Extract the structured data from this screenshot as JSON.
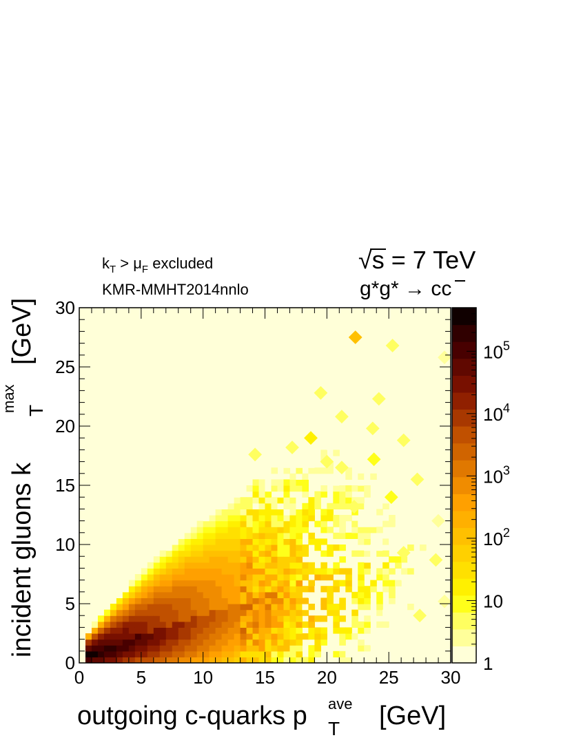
{
  "chart_data": {
    "type": "heatmap",
    "header": {
      "cut_label": {
        "k": "k",
        "sub_t": "T",
        "gt": " > μ",
        "sub_f": "F",
        "rest": " excluded"
      },
      "pdf_label": "KMR-MMHT2014nnlo",
      "energy_label": {
        "sqrt_symbol": "√",
        "rest": "s = 7 TeV"
      },
      "process_label": {
        "prefix": "g*g* → c",
        "bar_char": "c"
      }
    },
    "xlabel": {
      "main": "outgoing c-quarks p",
      "sup": "ave",
      "sub": "T",
      "unit": "[GeV]"
    },
    "ylabel": {
      "main": "incident gluons k",
      "sup": "max",
      "sub": "T",
      "unit": "[GeV]"
    },
    "xlim": [
      0,
      30
    ],
    "ylim": [
      0,
      30
    ],
    "x_ticks": [
      "0",
      "5",
      "10",
      "15",
      "20",
      "25",
      "30"
    ],
    "y_ticks": [
      "0",
      "5",
      "10",
      "15",
      "20",
      "25",
      "30"
    ],
    "x_tick_values": [
      0,
      5,
      10,
      15,
      20,
      25,
      30
    ],
    "y_tick_values": [
      0,
      5,
      10,
      15,
      20,
      25,
      30
    ],
    "colorbar": {
      "scale": "log",
      "range": [
        1,
        500000
      ],
      "tick_values": [
        1,
        10,
        100,
        1000,
        10000,
        100000
      ],
      "tick_labels": [
        {
          "base": "1",
          "exp": ""
        },
        {
          "base": "10",
          "exp": ""
        },
        {
          "base": "10",
          "exp": "2"
        },
        {
          "base": "10",
          "exp": "3"
        },
        {
          "base": "10",
          "exp": "4"
        },
        {
          "base": "10",
          "exp": "5"
        }
      ],
      "levels": 20,
      "palette": [
        "#ffffd8",
        "#ffff9a",
        "#ffff60",
        "#ffff1a",
        "#fff000",
        "#ffe000",
        "#ffd000",
        "#ffc000",
        "#ffb000",
        "#ffa000",
        "#f08c00",
        "#e07800",
        "#d06400",
        "#c05000",
        "#a83800",
        "#902000",
        "#781000",
        "#600800",
        "#480000",
        "#300000",
        "#100000"
      ]
    },
    "density_model": {
      "description": "log10 density shown as filled contours",
      "peak_log10": 5.6,
      "peak_at": {
        "x": 1.5,
        "y": 1.5
      },
      "kt_over_pt_mean": 0.35,
      "kt_over_pt_max": 1.3
    },
    "scattered_cells": [
      {
        "x": 22.3,
        "y": 27.5,
        "log10": 2.0
      },
      {
        "x": 25.3,
        "y": 26.8,
        "log10": 0.6
      },
      {
        "x": 29.5,
        "y": 25.8,
        "log10": 0.4
      },
      {
        "x": 19.5,
        "y": 22.8,
        "log10": 0.7
      },
      {
        "x": 24.2,
        "y": 22.3,
        "log10": 0.6
      },
      {
        "x": 21.2,
        "y": 20.8,
        "log10": 0.8
      },
      {
        "x": 23.7,
        "y": 19.8,
        "log10": 0.6
      },
      {
        "x": 18.7,
        "y": 19.0,
        "log10": 1.2
      },
      {
        "x": 26.2,
        "y": 18.8,
        "log10": 0.6
      },
      {
        "x": 23.8,
        "y": 17.2,
        "log10": 1.0
      },
      {
        "x": 21.2,
        "y": 16.5,
        "log10": 0.7
      },
      {
        "x": 27.3,
        "y": 15.5,
        "log10": 0.6
      },
      {
        "x": 25.2,
        "y": 14.0,
        "log10": 0.9
      },
      {
        "x": 22.2,
        "y": 13.2,
        "log10": 0.7
      },
      {
        "x": 29.0,
        "y": 12.0,
        "log10": 0.5
      },
      {
        "x": 28.8,
        "y": 8.7,
        "log10": 0.6
      },
      {
        "x": 26.2,
        "y": 9.3,
        "log10": 0.6
      },
      {
        "x": 29.5,
        "y": 5.2,
        "log10": 0.5
      },
      {
        "x": 27.5,
        "y": 4.0,
        "log10": 0.6
      },
      {
        "x": 20.0,
        "y": 17.0,
        "log10": 0.7
      },
      {
        "x": 17.2,
        "y": 18.2,
        "log10": 0.6
      },
      {
        "x": 14.2,
        "y": 17.6,
        "log10": 0.8
      }
    ]
  }
}
